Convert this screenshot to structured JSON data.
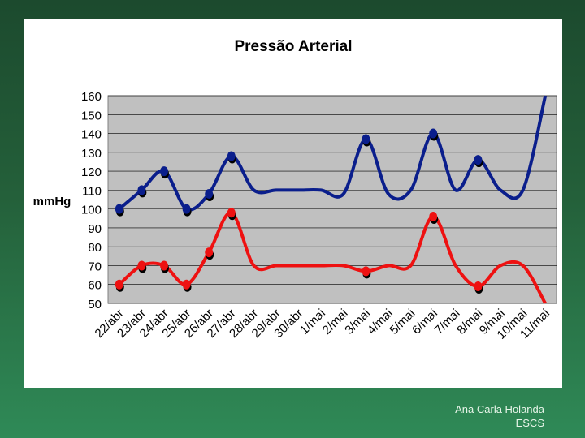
{
  "footer": {
    "author": "Ana Carla Holanda",
    "org": "ESCS"
  },
  "chart_data": {
    "type": "line",
    "title": "Pressão Arterial",
    "ylabel": "mmHg",
    "xlabel": "",
    "ylim": [
      50,
      160
    ],
    "yticks": [
      50,
      60,
      70,
      80,
      90,
      100,
      110,
      120,
      130,
      140,
      150,
      160
    ],
    "grid": true,
    "legend": "none",
    "categories": [
      "22/abr",
      "23/abr",
      "24/abr",
      "25/abr",
      "26/abr",
      "27/abr",
      "28/abr",
      "29/abr",
      "30/abr",
      "1/mai",
      "2/mai",
      "3/mai",
      "4/mai",
      "5/mai",
      "6/mai",
      "7/mai",
      "8/mai",
      "9/mai",
      "10/mai",
      "11/mai"
    ],
    "plot_background": "#c0c0c0",
    "series": [
      {
        "name": "",
        "color": "#0a1e8c",
        "values": [
          100,
          110,
          120,
          100,
          108,
          128,
          110,
          110,
          110,
          110,
          108,
          137,
          108,
          110,
          140,
          110,
          126,
          110,
          110,
          160
        ],
        "markers": [
          1,
          1,
          1,
          1,
          1,
          1,
          0,
          0,
          0,
          0,
          0,
          1,
          0,
          0,
          1,
          0,
          1,
          0,
          0,
          0
        ]
      },
      {
        "name": "",
        "color": "#ee1111",
        "values": [
          60,
          70,
          70,
          60,
          77,
          98,
          70,
          70,
          70,
          70,
          70,
          67,
          70,
          70,
          96,
          70,
          59,
          70,
          70,
          50
        ],
        "markers": [
          1,
          1,
          1,
          1,
          1,
          1,
          0,
          0,
          0,
          0,
          0,
          1,
          0,
          0,
          1,
          0,
          1,
          0,
          0,
          0
        ]
      }
    ]
  }
}
